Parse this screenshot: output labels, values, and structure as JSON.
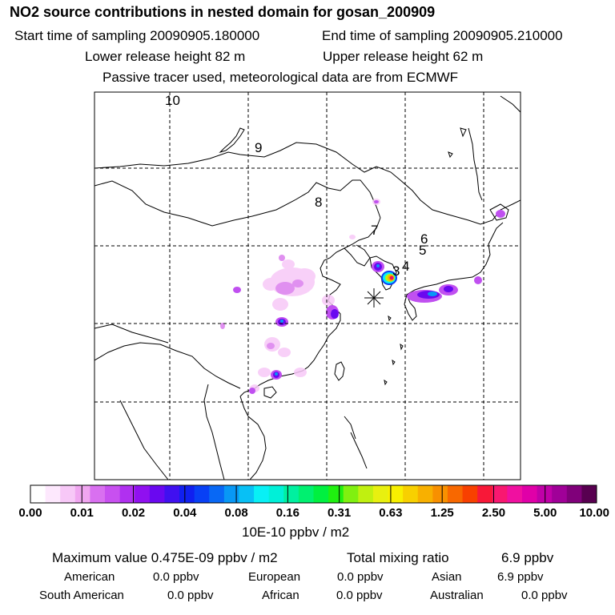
{
  "header": {
    "title": "NO2 source contributions in nested domain for gosan_200909",
    "start_time": "Start time of sampling 20090905.180000",
    "end_time": "End time of sampling 20090905.210000",
    "lower_height": "Lower release height   82 m",
    "upper_height": "Upper release height   62 m",
    "tracer_note": "Passive tracer used, meteorological data are from ECMWF"
  },
  "map": {
    "trajectory_labels": [
      "10",
      "9",
      "8",
      "7",
      "6",
      "5",
      "4",
      "3"
    ],
    "receptor_marker": "receptor-star"
  },
  "colorbar": {
    "colors": [
      "#ffffff",
      "#fde8fd",
      "#f7c8f7",
      "#f0a6f0",
      "#d970f0",
      "#c850f0",
      "#b030f0",
      "#9010f0",
      "#6a08f0",
      "#4010f0",
      "#1020f0",
      "#0840f5",
      "#0868f5",
      "#0898f5",
      "#08c0f5",
      "#08f0f5",
      "#00f0d8",
      "#00f0a0",
      "#00f070",
      "#00f040",
      "#20f010",
      "#80f010",
      "#c0f010",
      "#e8f010",
      "#f8f000",
      "#f8d000",
      "#f8b000",
      "#f89000",
      "#f86800",
      "#f84000",
      "#f81838",
      "#f81870",
      "#f010a0",
      "#e000a8",
      "#c000a8",
      "#a00098",
      "#80007a",
      "#580050"
    ],
    "tick_labels": [
      "0.00",
      "0.01",
      "0.02",
      "0.04",
      "0.08",
      "0.16",
      "0.31",
      "0.63",
      "1.25",
      "2.50",
      "5.00",
      "10.00"
    ],
    "unit": "10E-10 ppbv / m2"
  },
  "summary": {
    "max_value": "Maximum value  0.475E-09 ppbv / m2",
    "total_label": "Total mixing ratio",
    "total_value": "6.9 ppbv",
    "regions": [
      {
        "name": "American",
        "value": "0.0 ppbv"
      },
      {
        "name": "European",
        "value": "0.0 ppbv"
      },
      {
        "name": "Asian",
        "value": "6.9 ppbv"
      },
      {
        "name": "South American",
        "value": "0.0 ppbv"
      },
      {
        "name": "African",
        "value": "0.0 ppbv"
      },
      {
        "name": "Australian",
        "value": "0.0 ppbv"
      }
    ]
  }
}
